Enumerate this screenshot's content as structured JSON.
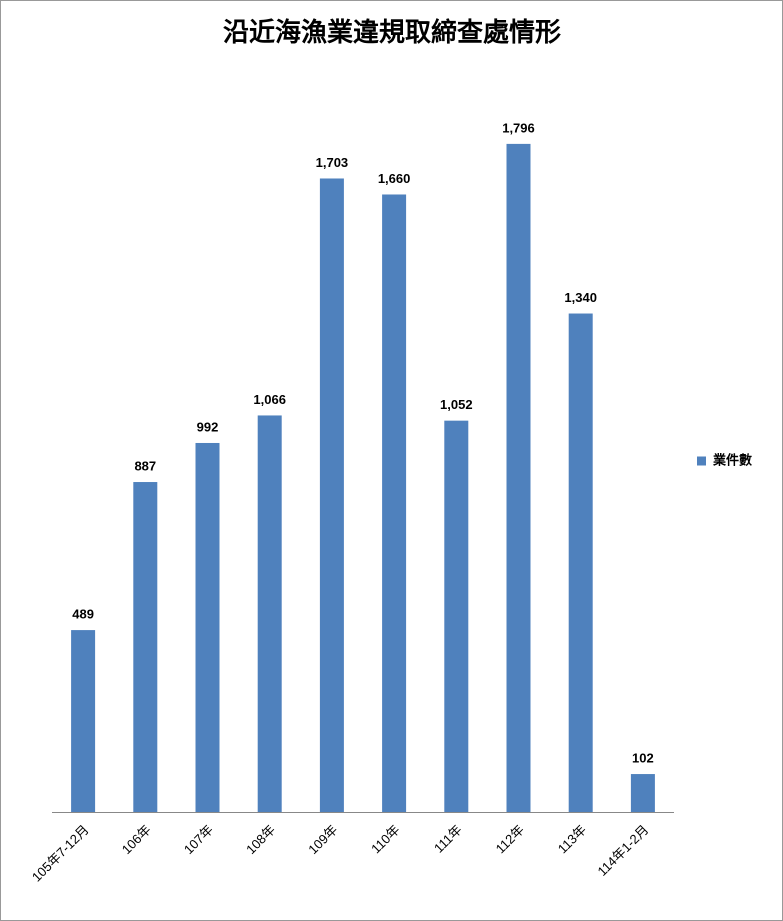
{
  "chart_data": {
    "type": "bar",
    "title": "沿近海漁業違規取締查處情形",
    "categories": [
      "105年7-12月",
      "106年",
      "107年",
      "108年",
      "109年",
      "110年",
      "111年",
      "112年",
      "113年",
      "114年1-2月"
    ],
    "series": [
      {
        "name": "業件數",
        "color": "#4f81bd",
        "values": [
          489,
          887,
          992,
          1066,
          1703,
          1660,
          1052,
          1796,
          1340,
          102
        ],
        "value_labels": [
          "489",
          "887",
          "992",
          "1,066",
          "1,703",
          "1,660",
          "1,052",
          "1,796",
          "1,340",
          "102"
        ]
      }
    ],
    "ylim": [
      0,
      2000
    ],
    "legend": "right"
  }
}
